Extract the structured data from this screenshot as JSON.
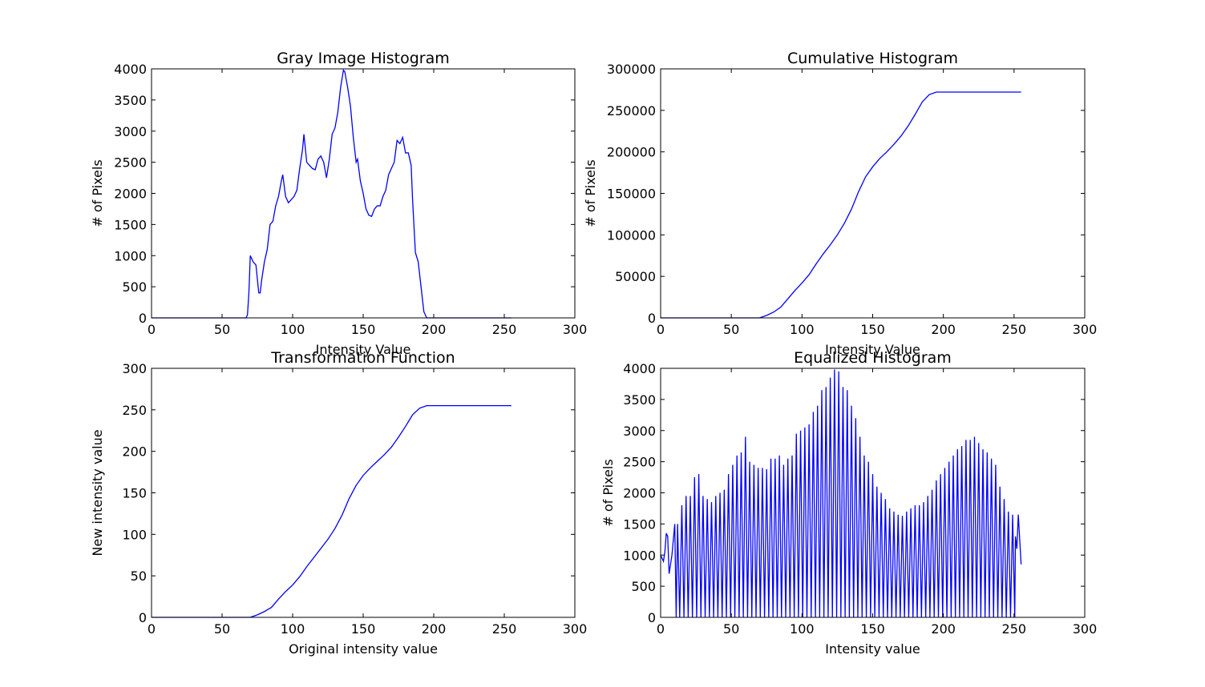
{
  "chart_data": [
    {
      "type": "line",
      "title": "Gray Image Histogram",
      "xlabel": "Intensity Value",
      "ylabel": "# of Pixels",
      "xlim": [
        0,
        300
      ],
      "xticks": [
        0,
        50,
        100,
        150,
        200,
        250,
        300
      ],
      "ylim": [
        0,
        4000
      ],
      "yticks": [
        0,
        500,
        1000,
        1500,
        2000,
        2500,
        3000,
        3500,
        4000
      ],
      "series": [
        {
          "color": "#0000ff",
          "x": [
            0,
            67,
            68,
            69,
            70,
            72,
            74,
            76,
            77,
            78,
            80,
            82,
            84,
            86,
            88,
            90,
            92,
            93,
            95,
            97,
            99,
            101,
            103,
            105,
            107,
            108,
            110,
            112,
            114,
            116,
            118,
            120,
            122,
            124,
            126,
            128,
            130,
            132,
            134,
            136,
            137,
            139,
            141,
            143,
            145,
            146,
            148,
            150,
            152,
            154,
            156,
            158,
            160,
            162,
            164,
            166,
            168,
            170,
            172,
            174,
            176,
            178,
            180,
            182,
            184,
            185,
            187,
            189,
            191,
            193,
            195,
            255
          ],
          "values": [
            0,
            0,
            50,
            400,
            1000,
            900,
            850,
            400,
            400,
            600,
            900,
            1100,
            1500,
            1550,
            1800,
            1950,
            2200,
            2300,
            1950,
            1850,
            1900,
            1950,
            2050,
            2400,
            2700,
            2950,
            2500,
            2450,
            2400,
            2380,
            2550,
            2600,
            2500,
            2250,
            2550,
            2950,
            3050,
            3300,
            3700,
            3980,
            3950,
            3700,
            3400,
            2900,
            2500,
            2550,
            2200,
            2000,
            1750,
            1650,
            1630,
            1750,
            1800,
            1800,
            1950,
            2050,
            2300,
            2400,
            2500,
            2850,
            2800,
            2900,
            2650,
            2650,
            2450,
            1900,
            1050,
            900,
            500,
            100,
            0,
            0
          ]
        }
      ]
    },
    {
      "type": "line",
      "title": "Cumulative Histogram",
      "xlabel": "Intensity Value",
      "ylabel": "# of Pixels",
      "xlim": [
        0,
        300
      ],
      "xticks": [
        0,
        50,
        100,
        150,
        200,
        250,
        300
      ],
      "ylim": [
        0,
        300000
      ],
      "yticks": [
        0,
        50000,
        100000,
        150000,
        200000,
        250000,
        300000
      ],
      "series": [
        {
          "color": "#0000ff",
          "x": [
            0,
            70,
            75,
            80,
            85,
            90,
            95,
            100,
            105,
            110,
            115,
            120,
            125,
            130,
            135,
            140,
            145,
            150,
            155,
            160,
            165,
            170,
            175,
            180,
            185,
            190,
            195,
            255
          ],
          "values": [
            0,
            0,
            3000,
            7000,
            13000,
            23000,
            33000,
            42000,
            52000,
            65000,
            77000,
            88000,
            100000,
            114000,
            131000,
            152000,
            170000,
            182000,
            192000,
            200000,
            209000,
            219000,
            231000,
            245000,
            260000,
            269000,
            272000,
            272000
          ]
        }
      ]
    },
    {
      "type": "line",
      "title": "Transformation Function",
      "xlabel": "Original intensity value",
      "ylabel": "New intensity value",
      "xlim": [
        0,
        300
      ],
      "xticks": [
        0,
        50,
        100,
        150,
        200,
        250,
        300
      ],
      "ylim": [
        0,
        300
      ],
      "yticks": [
        0,
        50,
        100,
        150,
        200,
        250,
        300
      ],
      "series": [
        {
          "color": "#0000ff",
          "x": [
            0,
            70,
            75,
            80,
            85,
            90,
            95,
            100,
            105,
            110,
            115,
            120,
            125,
            130,
            135,
            140,
            145,
            150,
            155,
            160,
            165,
            170,
            175,
            180,
            185,
            190,
            195,
            255
          ],
          "values": [
            0,
            0,
            3,
            7,
            12,
            22,
            31,
            39,
            49,
            61,
            72,
            83,
            94,
            107,
            123,
            143,
            159,
            171,
            180,
            188,
            196,
            205,
            217,
            230,
            244,
            252,
            255,
            255
          ]
        }
      ]
    },
    {
      "type": "line",
      "title": "Equalized Histogram",
      "xlabel": "Intensity value",
      "ylabel": "# of Pixels",
      "xlim": [
        0,
        300
      ],
      "xticks": [
        0,
        50,
        100,
        150,
        200,
        250,
        300
      ],
      "ylim": [
        0,
        4000
      ],
      "yticks": [
        0,
        500,
        1000,
        1500,
        2000,
        2500,
        3000,
        3500,
        4000
      ],
      "series": [
        {
          "color": "#0000ff",
          "x": [
            0,
            2,
            3,
            4,
            5,
            6,
            8,
            10,
            11,
            12,
            13.5,
            15,
            16.5,
            18,
            19.5,
            21,
            22.5,
            24,
            25.5,
            27,
            28.5,
            30,
            31.5,
            33,
            34.5,
            36,
            37.5,
            39,
            40.5,
            42,
            43.5,
            45,
            46.5,
            48,
            49.5,
            51,
            52.5,
            54,
            55.5,
            57,
            58.5,
            60,
            61.5,
            63,
            64.5,
            66,
            67.5,
            69,
            70.5,
            72,
            73.5,
            75,
            76.5,
            78,
            79.5,
            81,
            82.5,
            84,
            85.5,
            87,
            88.5,
            90,
            91.5,
            93,
            94.5,
            96,
            97.5,
            99,
            100.5,
            102,
            103.5,
            105,
            106.5,
            108,
            109.5,
            111,
            112.5,
            114,
            115.5,
            117,
            118.5,
            120,
            121.5,
            123,
            124.5,
            126,
            127.5,
            129,
            130.5,
            132,
            133.5,
            135,
            136.5,
            138,
            139.5,
            141,
            142.5,
            144,
            145.5,
            147,
            148.5,
            150,
            151.5,
            153,
            154.5,
            156,
            157.5,
            159,
            160.5,
            162,
            163.5,
            165,
            166.5,
            168,
            169.5,
            171,
            172.5,
            174,
            175.5,
            177,
            178.5,
            180,
            181.5,
            183,
            184.5,
            186,
            187.5,
            189,
            190.5,
            192,
            193.5,
            195,
            196.5,
            198,
            199.5,
            201,
            202.5,
            204,
            205.5,
            207,
            208.5,
            210,
            211.5,
            213,
            214.5,
            216,
            217.5,
            219,
            220.5,
            222,
            223.5,
            225,
            226.5,
            228,
            229.5,
            231,
            232.5,
            234,
            235.5,
            237,
            238.5,
            240,
            241.5,
            243,
            244.5,
            246,
            247.5,
            249,
            250.5,
            251,
            252,
            253,
            255
          ],
          "values": [
            1000,
            900,
            1050,
            1350,
            1300,
            700,
            1000,
            1500,
            0,
            1500,
            0,
            1800,
            0,
            1950,
            0,
            1950,
            0,
            2250,
            0,
            2300,
            0,
            1950,
            0,
            1900,
            0,
            1850,
            0,
            1950,
            0,
            2000,
            0,
            2050,
            0,
            2300,
            0,
            2450,
            0,
            2600,
            0,
            2650,
            0,
            2900,
            0,
            2500,
            0,
            2450,
            0,
            2400,
            0,
            2400,
            0,
            2380,
            0,
            2550,
            0,
            2550,
            0,
            2600,
            0,
            2450,
            0,
            2550,
            0,
            2600,
            0,
            2950,
            0,
            3000,
            0,
            3050,
            0,
            3100,
            0,
            3300,
            0,
            3400,
            0,
            3650,
            0,
            3700,
            0,
            3850,
            0,
            3980,
            0,
            3950,
            0,
            3700,
            0,
            3650,
            0,
            3400,
            0,
            3200,
            0,
            2900,
            0,
            2600,
            0,
            2500,
            0,
            2300,
            0,
            2100,
            0,
            2000,
            0,
            1900,
            0,
            1750,
            0,
            1700,
            0,
            1650,
            0,
            1630,
            0,
            1700,
            0,
            1750,
            0,
            1800,
            0,
            1800,
            0,
            1850,
            0,
            1950,
            0,
            2050,
            0,
            2200,
            0,
            2300,
            0,
            2400,
            0,
            2500,
            0,
            2600,
            0,
            2700,
            0,
            2750,
            0,
            2850,
            0,
            2850,
            0,
            2900,
            0,
            2800,
            0,
            2700,
            0,
            2650,
            0,
            2550,
            0,
            2450,
            0,
            2100,
            0,
            1900,
            0,
            1700,
            0,
            1650,
            0,
            1300,
            1100,
            1650,
            850
          ]
        }
      ]
    }
  ]
}
